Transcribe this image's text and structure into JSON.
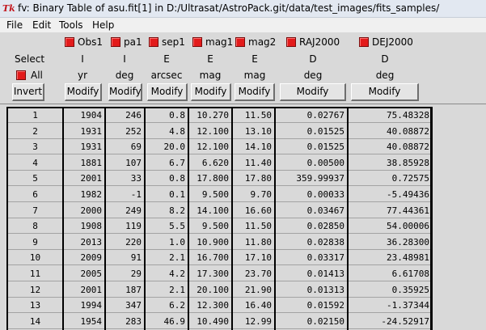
{
  "window": {
    "title": "fv: Binary Table of asu.fit[1] in D:/Ultrasat/AstroPack.git/data/test_images/fits_samples/",
    "icon_text": "Tk"
  },
  "menu": [
    "File",
    "Edit",
    "Tools",
    "Help"
  ],
  "controls": {
    "select_label": "Select",
    "all_label": "All",
    "invert_label": "Invert",
    "modify_label": "Modify"
  },
  "columns": [
    {
      "name": "Obs1",
      "type": "I",
      "unit": "yr"
    },
    {
      "name": "pa1",
      "type": "I",
      "unit": "deg"
    },
    {
      "name": "sep1",
      "type": "E",
      "unit": "arcsec"
    },
    {
      "name": "mag1",
      "type": "E",
      "unit": "mag"
    },
    {
      "name": "mag2",
      "type": "E",
      "unit": "mag"
    },
    {
      "name": "RAJ2000",
      "type": "D",
      "unit": "deg"
    },
    {
      "name": "DEJ2000",
      "type": "D",
      "unit": "deg"
    }
  ],
  "rows": [
    [
      "1",
      "1904",
      "246",
      "0.8",
      "10.270",
      "11.50",
      "0.02767",
      "75.48328"
    ],
    [
      "2",
      "1931",
      "252",
      "4.8",
      "12.100",
      "13.10",
      "0.01525",
      "40.08872"
    ],
    [
      "3",
      "1931",
      "69",
      "20.0",
      "12.100",
      "14.10",
      "0.01525",
      "40.08872"
    ],
    [
      "4",
      "1881",
      "107",
      "6.7",
      "6.620",
      "11.40",
      "0.00500",
      "38.85928"
    ],
    [
      "5",
      "2001",
      "33",
      "0.8",
      "17.800",
      "17.80",
      "359.99937",
      "0.72575"
    ],
    [
      "6",
      "1982",
      "-1",
      "0.1",
      "9.500",
      "9.70",
      "0.00033",
      "-5.49436"
    ],
    [
      "7",
      "2000",
      "249",
      "8.2",
      "14.100",
      "16.60",
      "0.03467",
      "77.44361"
    ],
    [
      "8",
      "1908",
      "119",
      "5.5",
      "9.500",
      "11.50",
      "0.02850",
      "54.00006"
    ],
    [
      "9",
      "2013",
      "220",
      "1.0",
      "10.900",
      "11.80",
      "0.02838",
      "36.28300"
    ],
    [
      "10",
      "2009",
      "91",
      "2.1",
      "16.700",
      "17.10",
      "0.03317",
      "23.48981"
    ],
    [
      "11",
      "2005",
      "29",
      "4.2",
      "17.300",
      "23.70",
      "0.01413",
      "6.61708"
    ],
    [
      "12",
      "2001",
      "187",
      "2.1",
      "20.100",
      "21.90",
      "0.01313",
      "0.35925"
    ],
    [
      "13",
      "1994",
      "347",
      "6.2",
      "12.300",
      "16.40",
      "0.01592",
      "-1.37344"
    ],
    [
      "14",
      "1954",
      "283",
      "46.9",
      "10.490",
      "12.99",
      "0.02150",
      "-24.52917"
    ]
  ],
  "colors": {
    "checkbox": "#e31b1b",
    "panel": "#d9d9d9",
    "titlebar": "#e2e8f1"
  }
}
